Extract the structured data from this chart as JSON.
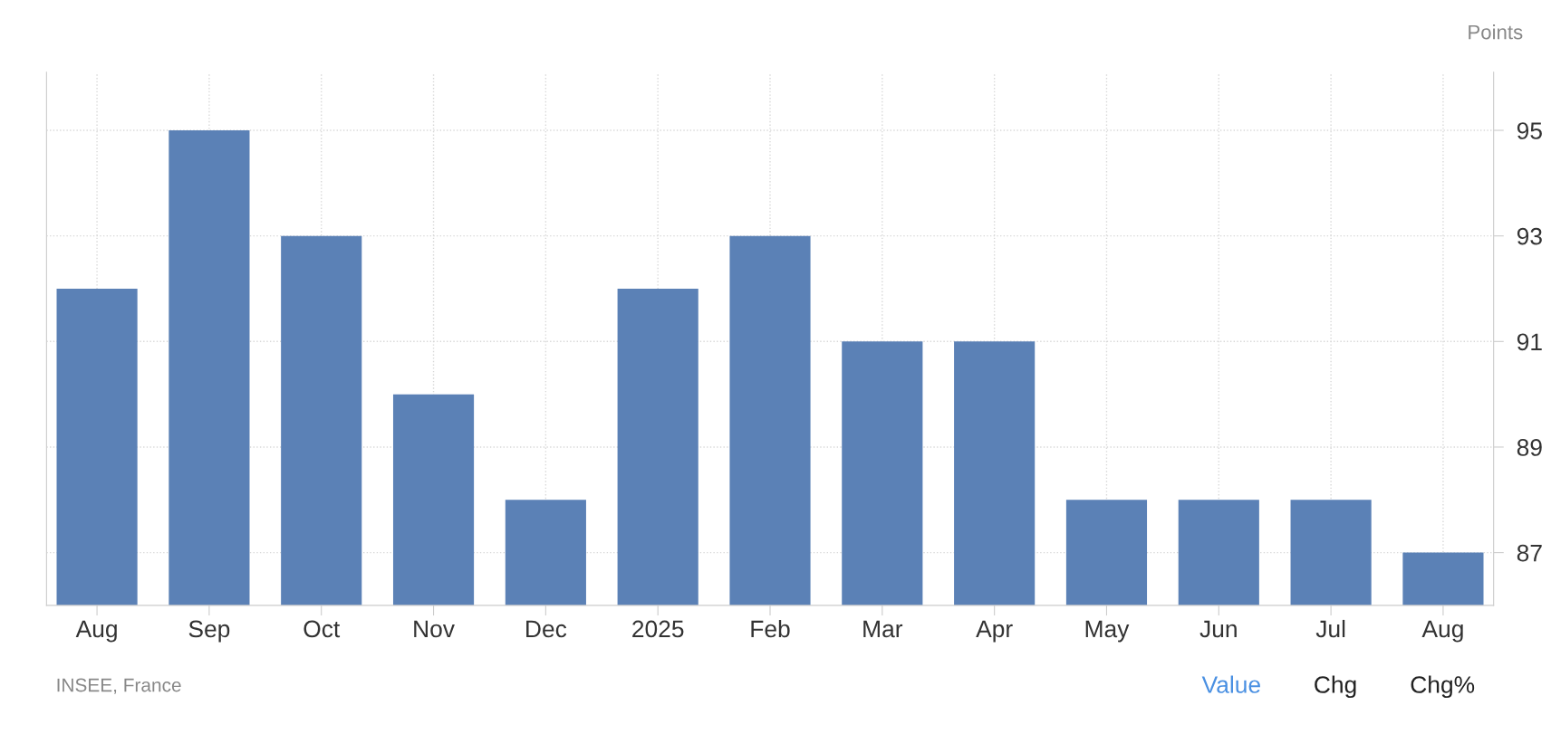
{
  "chart_data": {
    "type": "bar",
    "ylabel": "Points",
    "categories": [
      "Aug",
      "Sep",
      "Oct",
      "Nov",
      "Dec",
      "2025",
      "Feb",
      "Mar",
      "Apr",
      "May",
      "Jun",
      "Jul",
      "Aug"
    ],
    "values": [
      92,
      95,
      93,
      90,
      88,
      92,
      93,
      91,
      91,
      88,
      88,
      88,
      87
    ],
    "color": "#5b81b6",
    "ylim": [
      86,
      96.1
    ],
    "yticks": [
      87,
      89,
      91,
      93,
      95
    ],
    "grid": true,
    "line_style": "dotted",
    "annotations": [
      "INSEE, France",
      "Value",
      "Chg",
      "Chg%"
    ]
  }
}
